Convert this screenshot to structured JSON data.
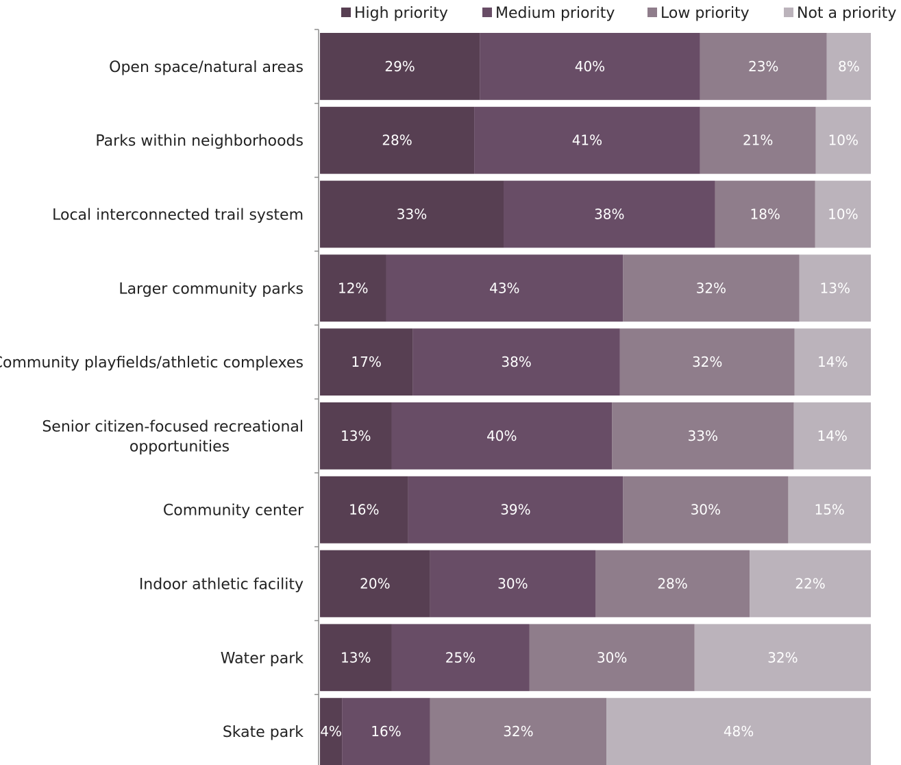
{
  "chart_data": {
    "type": "bar",
    "orientation": "horizontal",
    "stacked": true,
    "percent_stacked": true,
    "title": "",
    "xlabel": "",
    "ylabel": "",
    "legend_position": "top",
    "grid": false,
    "categories": [
      [
        "Open space/natural areas"
      ],
      [
        "Parks within neighborhoods"
      ],
      [
        "Local interconnected trail system"
      ],
      [
        "Larger community parks"
      ],
      [
        "Community playfields/athletic complexes"
      ],
      [
        "Senior citizen-focused recreational",
        "opportunities"
      ],
      [
        "Community center"
      ],
      [
        "Indoor athletic facility"
      ],
      [
        "Water park"
      ],
      [
        "Skate park"
      ]
    ],
    "series": [
      {
        "name": "High priority",
        "color": "#573f52",
        "values": [
          29,
          28,
          33,
          12,
          17,
          13,
          16,
          20,
          13,
          4
        ]
      },
      {
        "name": "Medium priority",
        "color": "#684d66",
        "values": [
          40,
          41,
          38,
          43,
          38,
          40,
          39,
          30,
          25,
          16
        ]
      },
      {
        "name": "Low priority",
        "color": "#8f7d8b",
        "values": [
          23,
          21,
          18,
          32,
          32,
          33,
          30,
          28,
          30,
          32
        ]
      },
      {
        "name": "Not a priority",
        "color": "#bbb3bb",
        "values": [
          8,
          10,
          10,
          13,
          14,
          14,
          15,
          22,
          32,
          48
        ]
      }
    ],
    "value_suffix": "%"
  }
}
